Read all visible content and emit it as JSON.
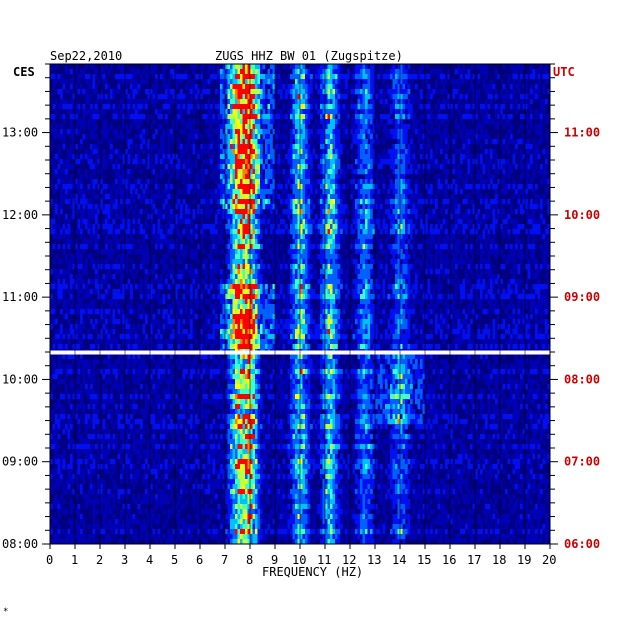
{
  "header": {
    "date": "Sep22,2010",
    "title": "ZUGS HHZ BW 01 (Zugspitze)"
  },
  "left_zone_label": "CES",
  "right_zone_label": "UTC",
  "footer_mark": "*",
  "colors": {
    "background": "#000080",
    "low": "#0000c8",
    "mid": "#00a0ff",
    "high": "#ffff00",
    "peak": "#ff0000",
    "gap": "#ffffff",
    "utc_text": "#cc0000"
  },
  "chart_data": {
    "type": "heatmap",
    "title": "ZUGS HHZ BW 01 (Zugspitze)",
    "subtitle": "Sep22,2010",
    "xlabel": "FREQUENCY (HZ)",
    "ylabel": "",
    "x_range": [
      0,
      20
    ],
    "x_ticks": [
      "0",
      "1",
      "2",
      "3",
      "4",
      "5",
      "6",
      "7",
      "8",
      "9",
      "10",
      "11",
      "12",
      "13",
      "14",
      "15",
      "16",
      "17",
      "18",
      "19",
      "20"
    ],
    "y_range_local": [
      "08:00",
      "13:50"
    ],
    "y_ticks_local": [
      "13:00",
      "12:00",
      "11:00",
      "10:00",
      "09:00",
      "08:00"
    ],
    "y_ticks_utc": [
      "11:00",
      "10:00",
      "09:00",
      "08:00",
      "07:00",
      "06:00"
    ],
    "grid": true,
    "data_gap_local_time": "10:20",
    "energy_bands_hz": [
      {
        "freq": 7.5,
        "strength": 0.8
      },
      {
        "freq": 8.0,
        "strength": 0.95
      },
      {
        "freq": 10.0,
        "strength": 0.7
      },
      {
        "freq": 11.2,
        "strength": 0.65
      },
      {
        "freq": 12.6,
        "strength": 0.45
      },
      {
        "freq": 14.0,
        "strength": 0.4
      }
    ]
  }
}
